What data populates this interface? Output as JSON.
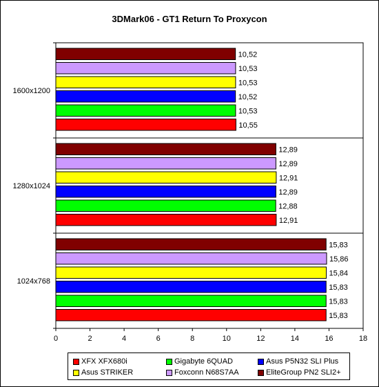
{
  "chart_data": {
    "type": "bar",
    "orientation": "horizontal",
    "title": "3DMark06 - GT1 Return To Proxycon",
    "categories": [
      "1600x1200",
      "1280x1024",
      "1024x768"
    ],
    "series": [
      {
        "name": "XFX XFX680i",
        "color": "#ff0000",
        "values": [
          10.55,
          12.91,
          15.83
        ],
        "labels": [
          "10,55",
          "12,91",
          "15,83"
        ]
      },
      {
        "name": "Gigabyte 6QUAD",
        "color": "#00ff00",
        "values": [
          10.53,
          12.88,
          15.83
        ],
        "labels": [
          "10,53",
          "12,88",
          "15,83"
        ]
      },
      {
        "name": "Asus P5N32 SLI Plus",
        "color": "#0000ff",
        "values": [
          10.52,
          12.89,
          15.83
        ],
        "labels": [
          "10,52",
          "12,89",
          "15,83"
        ]
      },
      {
        "name": "Asus STRIKER",
        "color": "#ffff00",
        "values": [
          10.53,
          12.91,
          15.84
        ],
        "labels": [
          "10,53",
          "12,91",
          "15,84"
        ]
      },
      {
        "name": "Foxconn N68S7AA",
        "color": "#cc99ff",
        "values": [
          10.53,
          12.89,
          15.86
        ],
        "labels": [
          "10,53",
          "12,89",
          "15,86"
        ]
      },
      {
        "name": "EliteGroup PN2 SLI2+",
        "color": "#800000",
        "values": [
          10.52,
          12.89,
          15.83
        ],
        "labels": [
          "10,52",
          "12,89",
          "15,83"
        ]
      }
    ],
    "xlim": [
      0,
      18
    ],
    "ticks": [
      "0",
      "2",
      "4",
      "6",
      "8",
      "10",
      "12",
      "14",
      "16",
      "18"
    ],
    "grid": false,
    "legend_position": "bottom"
  }
}
